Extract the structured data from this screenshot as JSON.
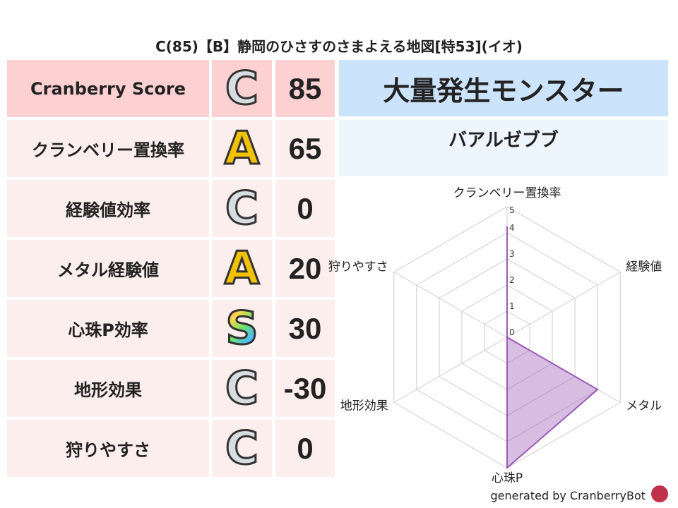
{
  "title": "C(85)【B】静岡のひさすのさまよえる地図[特53](イオ)",
  "rows": [
    {
      "label": "Cranberry Score",
      "grade": "C",
      "value": "85"
    },
    {
      "label": "クランベリー置換率",
      "grade": "A",
      "value": "65"
    },
    {
      "label": "経験値効率",
      "grade": "C",
      "value": "0"
    },
    {
      "label": "メタル経験値",
      "grade": "A",
      "value": "20"
    },
    {
      "label": "心珠P効率",
      "grade": "S",
      "value": "30"
    },
    {
      "label": "地形効果",
      "grade": "C",
      "value": "-30"
    },
    {
      "label": "狩りやすさ",
      "grade": "C",
      "value": "0"
    }
  ],
  "monster": {
    "header": "大量発生モンスター",
    "name": "バアルゼブブ"
  },
  "colors": {
    "score_row": "#fdd0d2",
    "row": "#fdeeee",
    "header_blue": "#cce4fb",
    "name_bg": "#eef6fd",
    "series": "#9b59b6"
  },
  "chart_data": {
    "type": "radar",
    "axes": [
      "クランベリー置換率",
      "経験値",
      "メタル",
      "心珠P",
      "地形効果",
      "狩りやすさ"
    ],
    "values": [
      4.25,
      0,
      4,
      5,
      0,
      0
    ],
    "range": [
      0,
      5
    ],
    "ticks": [
      "0",
      "1",
      "2",
      "3",
      "4",
      "5"
    ]
  },
  "footer": "generated by CranberryBot"
}
